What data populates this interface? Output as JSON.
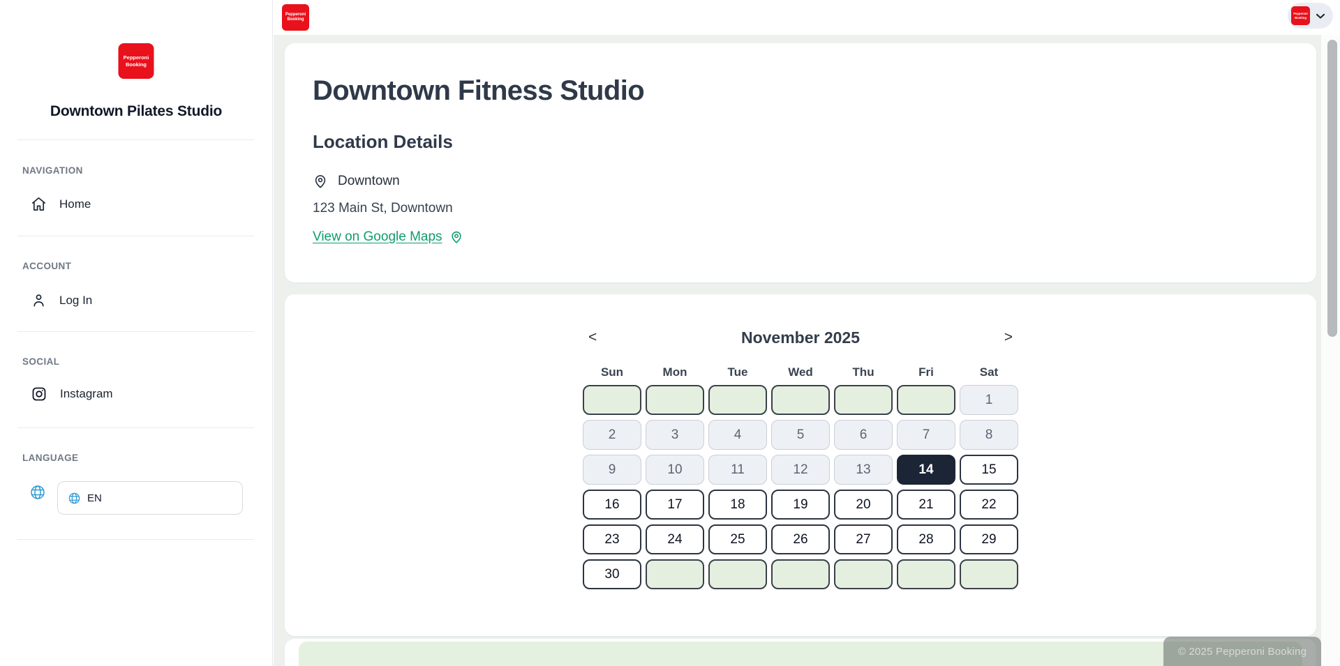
{
  "brand": {
    "logo_line1": "Pepperoni",
    "logo_line2": "Booking"
  },
  "sidebar": {
    "title": "Downtown Pilates Studio",
    "navigation_label": "NAVIGATION",
    "home_label": "Home",
    "account_label": "ACCOUNT",
    "login_label": "Log In",
    "social_label": "SOCIAL",
    "instagram_label": "Instagram",
    "language_label": "LANGUAGE",
    "language_value": "EN"
  },
  "page": {
    "title": "Downtown Fitness Studio",
    "location": {
      "heading": "Location Details",
      "name": "Downtown",
      "address": "123 Main St, Downtown",
      "maps_link_label": "View on Google Maps"
    }
  },
  "calendar": {
    "month_title": "November 2025",
    "prev_label": "<",
    "next_label": ">",
    "day_names": [
      "Sun",
      "Mon",
      "Tue",
      "Wed",
      "Thu",
      "Fri",
      "Sat"
    ],
    "selected_day": "14",
    "cells": [
      {
        "day": "",
        "state": "empty"
      },
      {
        "day": "",
        "state": "empty"
      },
      {
        "day": "",
        "state": "empty"
      },
      {
        "day": "",
        "state": "empty"
      },
      {
        "day": "",
        "state": "empty"
      },
      {
        "day": "",
        "state": "empty"
      },
      {
        "day": "1",
        "state": "past"
      },
      {
        "day": "2",
        "state": "past"
      },
      {
        "day": "3",
        "state": "past"
      },
      {
        "day": "4",
        "state": "past"
      },
      {
        "day": "5",
        "state": "past"
      },
      {
        "day": "6",
        "state": "past"
      },
      {
        "day": "7",
        "state": "past"
      },
      {
        "day": "8",
        "state": "past"
      },
      {
        "day": "9",
        "state": "past"
      },
      {
        "day": "10",
        "state": "past"
      },
      {
        "day": "11",
        "state": "past"
      },
      {
        "day": "12",
        "state": "past"
      },
      {
        "day": "13",
        "state": "past"
      },
      {
        "day": "14",
        "state": "selected"
      },
      {
        "day": "15",
        "state": "available"
      },
      {
        "day": "16",
        "state": "available"
      },
      {
        "day": "17",
        "state": "available"
      },
      {
        "day": "18",
        "state": "available"
      },
      {
        "day": "19",
        "state": "available"
      },
      {
        "day": "20",
        "state": "available"
      },
      {
        "day": "21",
        "state": "available"
      },
      {
        "day": "22",
        "state": "available"
      },
      {
        "day": "23",
        "state": "available"
      },
      {
        "day": "24",
        "state": "available"
      },
      {
        "day": "25",
        "state": "available"
      },
      {
        "day": "26",
        "state": "available"
      },
      {
        "day": "27",
        "state": "available"
      },
      {
        "day": "28",
        "state": "available"
      },
      {
        "day": "29",
        "state": "available"
      },
      {
        "day": "30",
        "state": "available"
      },
      {
        "day": "",
        "state": "empty"
      },
      {
        "day": "",
        "state": "empty"
      },
      {
        "day": "",
        "state": "empty"
      },
      {
        "day": "",
        "state": "empty"
      },
      {
        "day": "",
        "state": "empty"
      },
      {
        "day": "",
        "state": "empty"
      }
    ]
  },
  "footer": {
    "watermark": "© 2025 Pepperoni Booking"
  },
  "colors": {
    "brand_red": "#e8111c",
    "page_background": "#edf0ed",
    "selected_day_bg": "#1b2536",
    "empty_cell_bg": "#e4efdf",
    "past_cell_bg": "#edf0f5",
    "link_green": "#0f9d6a",
    "green_box_bg": "#e4f0e0"
  }
}
